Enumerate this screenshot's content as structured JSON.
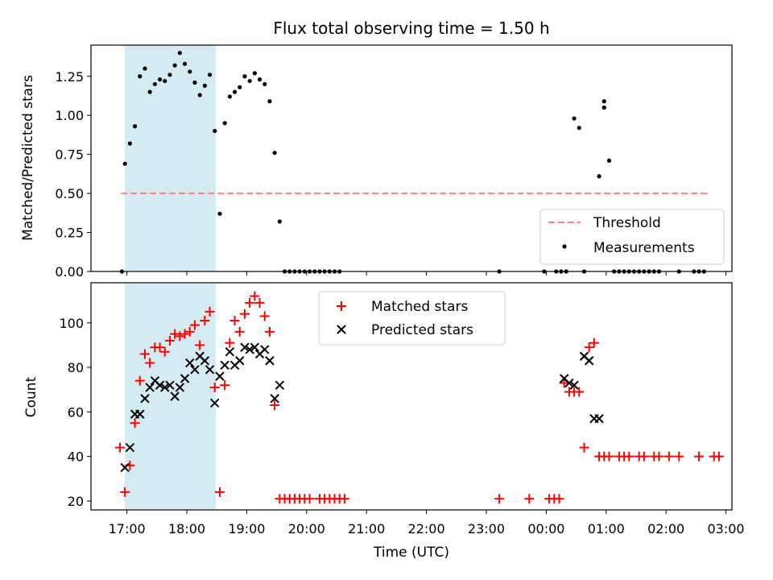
{
  "chart_data": [
    {
      "type": "scatter",
      "panel": "top",
      "title": "Flux total observing time = 1.50 h",
      "xlabel": "",
      "ylabel": "Matched/Predicted stars",
      "ylim": [
        0,
        1.45
      ],
      "xlim_hours_since_1700": [
        -0.6,
        10.1
      ],
      "yticks": [
        "0.00",
        "0.25",
        "0.50",
        "0.75",
        "1.00",
        "1.25"
      ],
      "highlight_span_hours_since_1700": [
        -0.03,
        1.48
      ],
      "highlight_color": "#add8e6",
      "threshold": {
        "name": "Threshold",
        "value": 0.5,
        "color": "#ff7f7f",
        "x_range_hours_since_1700": [
          -0.1,
          9.7
        ]
      },
      "legend": {
        "position": "lower-right",
        "entries": [
          "Threshold",
          "Measurements"
        ]
      },
      "series": [
        {
          "name": "Measurements",
          "color": "#000000",
          "marker": "dot",
          "time_utc": [
            "16:55",
            "16:58",
            "17:03",
            "17:08",
            "17:13",
            "17:18",
            "17:23",
            "17:28",
            "17:33",
            "17:38",
            "17:43",
            "17:48",
            "17:53",
            "17:58",
            "18:03",
            "18:08",
            "18:13",
            "18:18",
            "18:23",
            "18:28",
            "18:33",
            "18:38",
            "18:43",
            "18:48",
            "18:53",
            "18:58",
            "19:03",
            "19:08",
            "19:13",
            "19:18",
            "19:23",
            "19:28",
            "19:33",
            "19:38",
            "19:43",
            "19:48",
            "19:53",
            "19:58",
            "20:03",
            "20:08",
            "20:13",
            "20:18",
            "20:23",
            "20:28",
            "20:33",
            "23:13",
            "23:58",
            "00:10",
            "00:15",
            "00:20",
            "00:28",
            "00:33",
            "00:38",
            "00:53",
            "00:58",
            "00:58",
            "01:03",
            "01:08",
            "01:13",
            "01:18",
            "01:23",
            "01:28",
            "01:33",
            "01:38",
            "01:43",
            "01:48",
            "01:53",
            "02:13",
            "02:28",
            "02:33",
            "02:38"
          ],
          "y": [
            0.0,
            0.69,
            0.82,
            0.93,
            1.25,
            1.3,
            1.15,
            1.2,
            1.23,
            1.22,
            1.26,
            1.32,
            1.4,
            1.33,
            1.28,
            1.21,
            1.13,
            1.19,
            1.26,
            0.9,
            0.37,
            0.95,
            1.12,
            1.15,
            1.18,
            1.25,
            1.22,
            1.27,
            1.23,
            1.2,
            1.09,
            0.76,
            0.32,
            0.0,
            0.0,
            0.0,
            0.0,
            0.0,
            0.0,
            0.0,
            0.0,
            0.0,
            0.0,
            0.0,
            0.0,
            0.0,
            0.0,
            0.0,
            0.0,
            0.0,
            0.98,
            0.92,
            0.0,
            0.61,
            1.05,
            1.09,
            0.71,
            0.0,
            0.0,
            0.0,
            0.0,
            0.0,
            0.0,
            0.0,
            0.0,
            0.0,
            0.0,
            0.0,
            0.0,
            0.0,
            0.0
          ]
        }
      ]
    },
    {
      "type": "scatter",
      "panel": "bottom",
      "xlabel": "Time (UTC)",
      "ylabel": "Count",
      "ylim": [
        16,
        118
      ],
      "xlim_hours_since_1700": [
        -0.6,
        10.1
      ],
      "yticks": [
        "20",
        "40",
        "60",
        "80",
        "100"
      ],
      "xticks": [
        "17:00",
        "18:00",
        "19:00",
        "20:00",
        "21:00",
        "22:00",
        "23:00",
        "00:00",
        "01:00",
        "02:00",
        "03:00"
      ],
      "highlight_span_hours_since_1700": [
        -0.03,
        1.48
      ],
      "legend": {
        "position": "top-center",
        "entries": [
          "Matched stars",
          "Predicted stars"
        ]
      },
      "series": [
        {
          "name": "Matched stars",
          "color": "#ff0000",
          "marker": "plus",
          "time_utc": [
            "16:53",
            "16:58",
            "17:03",
            "17:08",
            "17:13",
            "17:18",
            "17:23",
            "17:28",
            "17:33",
            "17:38",
            "17:43",
            "17:48",
            "17:53",
            "17:58",
            "18:03",
            "18:08",
            "18:13",
            "18:18",
            "18:23",
            "18:28",
            "18:33",
            "18:38",
            "18:43",
            "18:48",
            "18:53",
            "18:58",
            "19:03",
            "19:08",
            "19:13",
            "19:18",
            "19:23",
            "19:28",
            "19:33",
            "19:38",
            "19:43",
            "19:48",
            "19:53",
            "19:58",
            "20:03",
            "20:13",
            "20:18",
            "20:23",
            "20:28",
            "20:33",
            "20:38",
            "23:13",
            "23:43",
            "00:03",
            "00:08",
            "00:13",
            "00:18",
            "00:23",
            "00:28",
            "00:33",
            "00:38",
            "00:43",
            "00:48",
            "00:53",
            "00:58",
            "01:03",
            "01:13",
            "01:18",
            "01:23",
            "01:33",
            "01:38",
            "01:48",
            "01:53",
            "02:03",
            "02:13",
            "02:33",
            "02:48",
            "02:53"
          ],
          "y": [
            44,
            24,
            36,
            55,
            74,
            86,
            82,
            89,
            89,
            87,
            92,
            95,
            94,
            95,
            96,
            99,
            90,
            101,
            105,
            71,
            24,
            72,
            91,
            101,
            96,
            104,
            109,
            112,
            109,
            103,
            96,
            63,
            21,
            21,
            21,
            21,
            21,
            21,
            21,
            21,
            21,
            21,
            21,
            21,
            21,
            21,
            21,
            21,
            21,
            21,
            73,
            69,
            69,
            69,
            44,
            89,
            91,
            40,
            40,
            40,
            40,
            40,
            40,
            40,
            40,
            40,
            40,
            40,
            40,
            40,
            40,
            40
          ]
        },
        {
          "name": "Predicted stars",
          "color": "#000000",
          "marker": "x",
          "time_utc": [
            "16:58",
            "17:03",
            "17:08",
            "17:13",
            "17:18",
            "17:23",
            "17:28",
            "17:33",
            "17:38",
            "17:43",
            "17:48",
            "17:53",
            "17:58",
            "18:03",
            "18:08",
            "18:13",
            "18:18",
            "18:23",
            "18:28",
            "18:33",
            "18:38",
            "18:43",
            "18:48",
            "18:53",
            "18:58",
            "19:03",
            "19:08",
            "19:13",
            "19:18",
            "19:23",
            "19:28",
            "19:33",
            "00:18",
            "00:23",
            "00:28",
            "00:38",
            "00:43",
            "00:48",
            "00:53"
          ],
          "y": [
            35,
            44,
            59,
            59,
            66,
            71,
            74,
            72,
            71,
            72,
            67,
            71,
            75,
            82,
            79,
            85,
            83,
            79,
            64,
            76,
            81,
            87,
            81,
            83,
            89,
            88,
            89,
            86,
            88,
            83,
            66,
            72,
            75,
            73,
            72,
            85,
            83,
            57,
            57
          ]
        }
      ]
    }
  ]
}
